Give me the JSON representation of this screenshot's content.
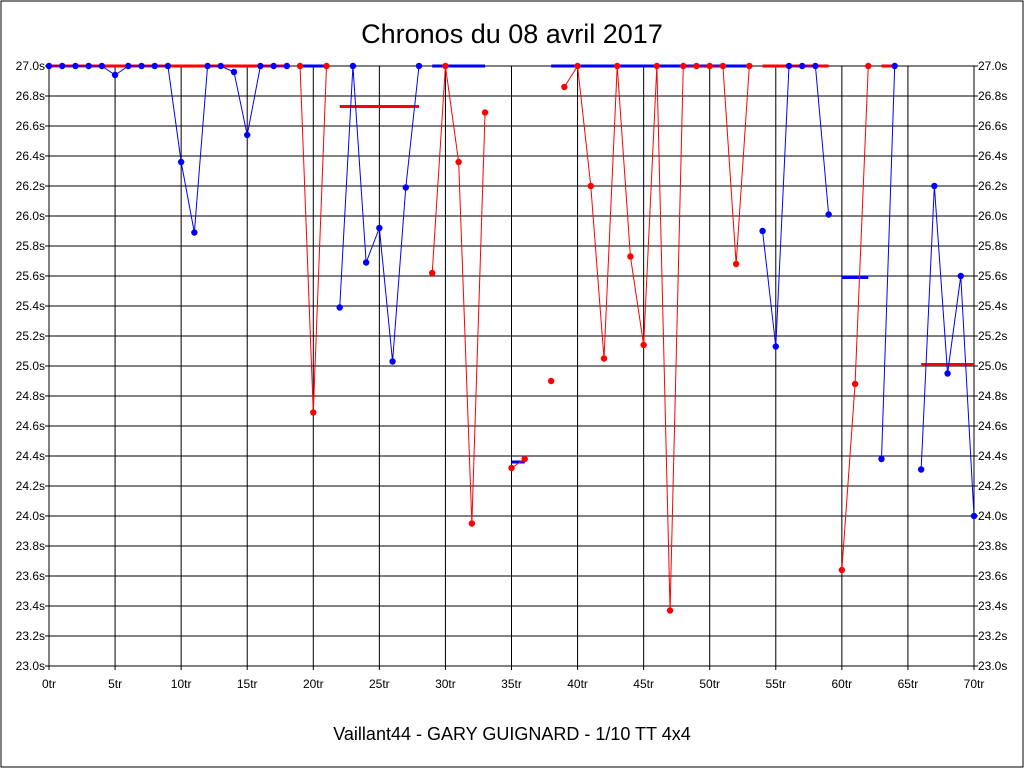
{
  "chart_data": {
    "type": "line",
    "title": "Chronos du 08 avril 2017",
    "subtitle": "Vaillant44 - GARY GUIGNARD - 1/10 TT 4x4",
    "x_tick_labels": [
      "0tr",
      "5tr",
      "10tr",
      "15tr",
      "20tr",
      "25tr",
      "30tr",
      "35tr",
      "40tr",
      "45tr",
      "50tr",
      "55tr",
      "60tr",
      "65tr",
      "70tr"
    ],
    "y_tick_labels": [
      "23.0s",
      "23.2s",
      "23.4s",
      "23.6s",
      "23.8s",
      "24.0s",
      "24.2s",
      "24.4s",
      "24.6s",
      "24.8s",
      "25.0s",
      "25.2s",
      "25.4s",
      "25.6s",
      "25.8s",
      "26.0s",
      "26.2s",
      "26.4s",
      "26.6s",
      "26.8s",
      "27.0s"
    ],
    "xlim": [
      0,
      70
    ],
    "ylim": [
      23.0,
      27.0
    ],
    "x_tick_step": 5,
    "y_tick_step": 0.2,
    "grid": true,
    "colors": {
      "series_a": "#0000ff",
      "series_b": "#ff0000",
      "grid": "#000000"
    },
    "series": [
      {
        "color": "blue",
        "points": [
          [
            0,
            27.0
          ],
          [
            1,
            27.0
          ],
          [
            2,
            27.0
          ],
          [
            3,
            27.0
          ],
          [
            4,
            27.0
          ],
          [
            5,
            26.94
          ],
          [
            6,
            27.0
          ],
          [
            7,
            27.0
          ],
          [
            8,
            27.0
          ],
          [
            9,
            27.0
          ],
          [
            10,
            26.36
          ],
          [
            11,
            25.89
          ],
          [
            12,
            27.0
          ],
          [
            13,
            27.0
          ],
          [
            14,
            26.96
          ],
          [
            15,
            26.54
          ],
          [
            16,
            27.0
          ],
          [
            17,
            27.0
          ],
          [
            18,
            27.0
          ]
        ]
      },
      {
        "color": "red",
        "points": [
          [
            19,
            27.0
          ],
          [
            20,
            24.69
          ],
          [
            21,
            27.0
          ]
        ]
      },
      {
        "color": "blue",
        "points": [
          [
            22,
            25.39
          ],
          [
            23,
            27.0
          ],
          [
            24,
            25.69
          ],
          [
            25,
            25.92
          ],
          [
            26,
            25.03
          ],
          [
            27,
            26.19
          ],
          [
            28,
            27.0
          ]
        ]
      },
      {
        "color": "red",
        "points": [
          [
            29,
            25.62
          ],
          [
            30,
            27.0
          ],
          [
            31,
            26.36
          ],
          [
            32,
            23.95
          ],
          [
            33,
            26.69
          ]
        ]
      },
      {
        "color": "red",
        "points": [
          [
            35,
            24.32
          ],
          [
            36,
            24.38
          ]
        ]
      },
      {
        "color": "red",
        "points": [
          [
            38,
            24.9
          ]
        ]
      },
      {
        "color": "red",
        "points": [
          [
            39,
            26.86
          ],
          [
            40,
            27.0
          ],
          [
            41,
            26.2
          ],
          [
            42,
            25.05
          ],
          [
            43,
            27.0
          ],
          [
            44,
            25.73
          ],
          [
            45,
            25.14
          ],
          [
            46,
            27.0
          ],
          [
            47,
            23.37
          ],
          [
            48,
            27.0
          ],
          [
            49,
            27.0
          ],
          [
            50,
            27.0
          ],
          [
            51,
            27.0
          ],
          [
            52,
            25.68
          ],
          [
            53,
            27.0
          ]
        ]
      },
      {
        "color": "blue",
        "points": [
          [
            54,
            25.9
          ],
          [
            55,
            25.13
          ],
          [
            56,
            27.0
          ],
          [
            57,
            27.0
          ],
          [
            58,
            27.0
          ],
          [
            59,
            26.01
          ]
        ]
      },
      {
        "color": "red",
        "points": [
          [
            60,
            23.64
          ],
          [
            61,
            24.88
          ],
          [
            62,
            27.0
          ]
        ]
      },
      {
        "color": "blue",
        "points": [
          [
            63,
            24.38
          ],
          [
            64,
            27.0
          ]
        ]
      },
      {
        "color": "blue",
        "points": [
          [
            66,
            24.31
          ],
          [
            67,
            26.2
          ],
          [
            68,
            24.95
          ],
          [
            69,
            25.6
          ],
          [
            70,
            24.0
          ]
        ]
      }
    ],
    "reference_lines": [
      {
        "color": "red",
        "x": [
          0,
          18
        ],
        "y": 27.0
      },
      {
        "color": "blue",
        "x": [
          19,
          21
        ],
        "y": 27.0
      },
      {
        "color": "red",
        "x": [
          22,
          28
        ],
        "y": 26.73
      },
      {
        "color": "blue",
        "x": [
          29,
          33
        ],
        "y": 27.0
      },
      {
        "color": "blue",
        "x": [
          35,
          36
        ],
        "y": 24.36
      },
      {
        "color": "blue",
        "x": [
          38,
          53
        ],
        "y": 27.0
      },
      {
        "color": "red",
        "x": [
          54,
          59
        ],
        "y": 27.0
      },
      {
        "color": "blue",
        "x": [
          60,
          62
        ],
        "y": 25.59
      },
      {
        "color": "red",
        "x": [
          63,
          64
        ],
        "y": 27.0
      },
      {
        "color": "red",
        "x": [
          66,
          70
        ],
        "y": 25.01
      }
    ]
  }
}
